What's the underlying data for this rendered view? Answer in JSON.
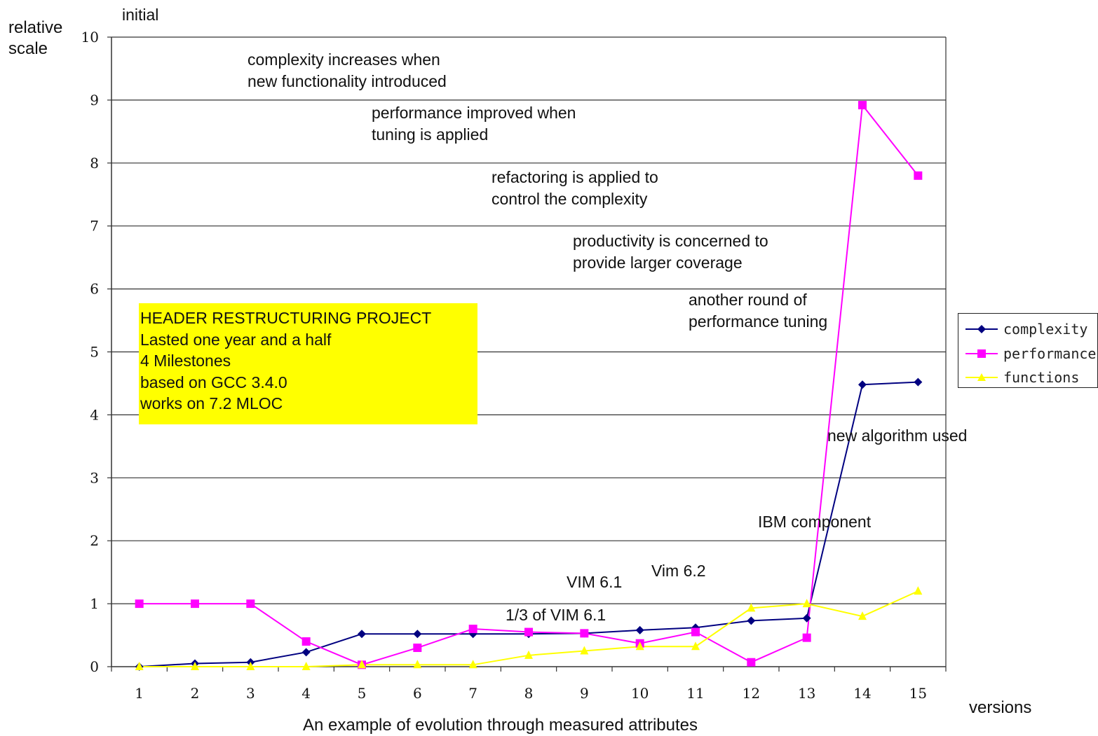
{
  "chart_data": {
    "type": "line",
    "caption": "An example of evolution through measured attributes",
    "xlabel": "versions",
    "ylabel": "relative\nscale",
    "x": [
      1,
      2,
      3,
      4,
      5,
      6,
      7,
      8,
      9,
      10,
      11,
      12,
      13,
      14,
      15
    ],
    "ylim": [
      0,
      10
    ],
    "yticks": [
      0,
      1,
      2,
      3,
      4,
      5,
      6,
      7,
      8,
      9,
      10
    ],
    "grid": true,
    "legend_position": "right",
    "series": [
      {
        "name": "complexity",
        "color": "#000080",
        "marker": "diamond",
        "values": [
          0.0,
          0.05,
          0.07,
          0.23,
          0.52,
          0.52,
          0.52,
          0.52,
          0.53,
          0.58,
          0.62,
          0.73,
          0.77,
          4.48,
          4.52
        ]
      },
      {
        "name": "performance",
        "color": "#ff00ff",
        "marker": "square",
        "values": [
          1.0,
          1.0,
          1.0,
          0.4,
          0.03,
          0.3,
          0.6,
          0.55,
          0.53,
          0.37,
          0.55,
          0.07,
          0.46,
          8.92,
          7.8
        ]
      },
      {
        "name": "functions",
        "color": "#ffff00",
        "marker": "triangle",
        "values": [
          0.0,
          0.0,
          0.0,
          0.0,
          0.03,
          0.03,
          0.03,
          0.18,
          0.25,
          0.32,
          0.32,
          0.93,
          1.0,
          0.8,
          1.2
        ]
      }
    ],
    "annotations": [
      "initial",
      "complexity increases when\nnew functionality introduced",
      "performance improved when\ntuning is applied",
      "refactoring is applied to\ncontrol the complexity",
      "productivity is concerned to\nprovide larger coverage",
      "another round of\nperformance tuning",
      "new algorithm used",
      "IBM component",
      "Vim 6.2",
      "VIM 6.1",
      "1/3 of VIM 6.1"
    ],
    "info_box": {
      "background": "#ffff00",
      "lines": "HEADER RESTRUCTURING PROJECT\nLasted one year and a half\n4 Milestones\nbased on GCC 3.4.0\nworks on 7.2 MLOC"
    }
  }
}
